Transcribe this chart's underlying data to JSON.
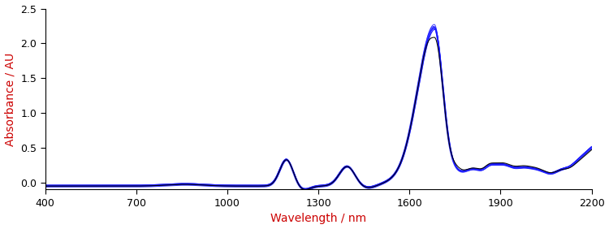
{
  "xlim": [
    400,
    2200
  ],
  "ylim": [
    -0.1,
    2.5
  ],
  "xticks": [
    400,
    700,
    1000,
    1300,
    1600,
    1900,
    2200
  ],
  "yticks": [
    0.0,
    0.5,
    1.0,
    1.5,
    2.0,
    2.5
  ],
  "xlabel": "Wavelength / nm",
  "ylabel": "Absorbance / AU",
  "xlabel_color": "#cc0000",
  "ylabel_color": "#cc0000",
  "line_color_blue": "#1a1aff",
  "line_color_black": "#000000",
  "figsize": [
    7.5,
    2.82
  ],
  "dpi": 100
}
